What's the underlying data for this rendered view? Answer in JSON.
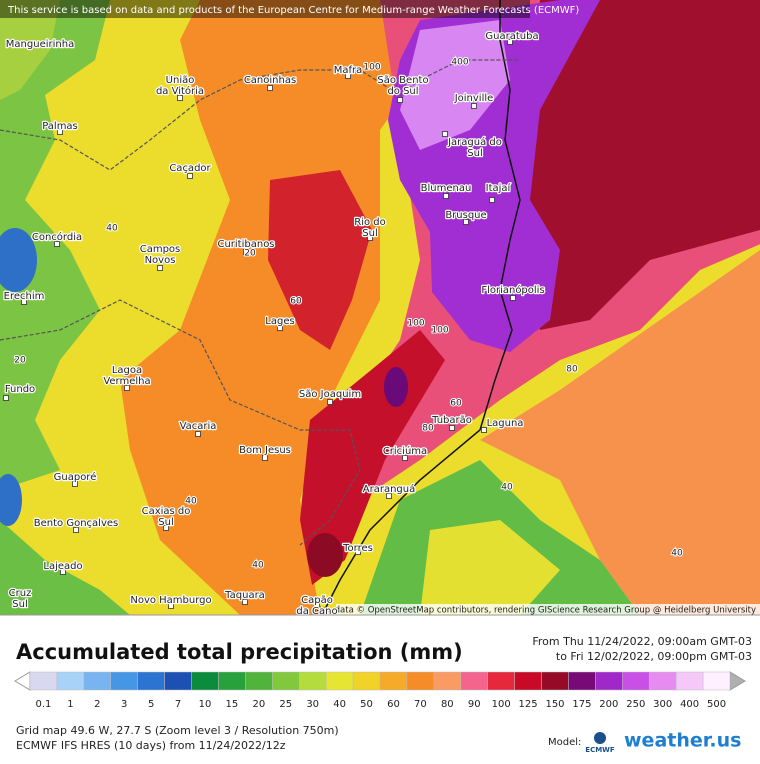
{
  "header": {
    "notice": "This service is based on data and products of the European Centre for Medium-range Weather Forecasts (ECMWF)"
  },
  "map": {
    "cities": [
      {
        "lines": [
          "Guaratuba"
        ]
      },
      {
        "lines": [
          "Mangueirinha"
        ]
      },
      {
        "lines": [
          "União",
          "da Vitória"
        ]
      },
      {
        "lines": [
          "Canoinhas"
        ]
      },
      {
        "lines": [
          "Mafra"
        ]
      },
      {
        "lines": [
          "São Bento",
          "do Sul"
        ]
      },
      {
        "lines": [
          "Joinville"
        ]
      },
      {
        "lines": [
          "Palmas"
        ]
      },
      {
        "lines": [
          "Jaraguá do",
          "Sul"
        ]
      },
      {
        "lines": [
          "Caçador"
        ]
      },
      {
        "lines": [
          "Blumenau"
        ]
      },
      {
        "lines": [
          "Itajaí"
        ]
      },
      {
        "lines": [
          "Brusque"
        ]
      },
      {
        "lines": [
          "Rio do",
          "Sul"
        ]
      },
      {
        "lines": [
          "Concórdia"
        ]
      },
      {
        "lines": [
          "Campos",
          "Novos"
        ]
      },
      {
        "lines": [
          "Curitibanos"
        ]
      },
      {
        "lines": [
          "Erechim"
        ]
      },
      {
        "lines": [
          "Florianópolis"
        ]
      },
      {
        "lines": [
          "Lages"
        ]
      },
      {
        "lines": [
          "Lagoa",
          "Vermelha"
        ]
      },
      {
        "lines": [
          "São Joaquim"
        ]
      },
      {
        "lines": [
          "Fundo"
        ]
      },
      {
        "lines": [
          "Tubarão"
        ]
      },
      {
        "lines": [
          "Laguna"
        ]
      },
      {
        "lines": [
          "Vacaria"
        ]
      },
      {
        "lines": [
          "Bom Jesus"
        ]
      },
      {
        "lines": [
          "Criciúma"
        ]
      },
      {
        "lines": [
          "Guaporé"
        ]
      },
      {
        "lines": [
          "Araranguá"
        ]
      },
      {
        "lines": [
          "Caxias do",
          "Sul"
        ]
      },
      {
        "lines": [
          "Bento Gonçalves"
        ]
      },
      {
        "lines": [
          "Torres"
        ]
      },
      {
        "lines": [
          "Lajeado"
        ]
      },
      {
        "lines": [
          "Cruz",
          "Sul"
        ]
      },
      {
        "lines": [
          "Novo Hamburgo"
        ]
      },
      {
        "lines": [
          "Taquara"
        ]
      },
      {
        "lines": [
          "Capão",
          "da Cano"
        ]
      }
    ],
    "contour_labels": [
      "100",
      "400",
      "40",
      "20",
      "60",
      "20",
      "100",
      "100",
      "80",
      "60",
      "80",
      "40",
      "40",
      "40",
      "40"
    ],
    "attribution": "Map data © OpenStreetMap contributors, rendering GIScience Research Group @ Heidelberg University"
  },
  "title": "Accumulated total precipitation (mm)",
  "period": [
    "From Thu 11/24/2022, 09:00am GMT-03",
    "to Fri 12/02/2022, 09:00pm GMT-03"
  ],
  "legend": {
    "values": [
      0.1,
      1,
      2,
      3,
      5,
      7,
      10,
      15,
      20,
      25,
      30,
      40,
      50,
      60,
      70,
      80,
      90,
      100,
      125,
      150,
      175,
      200,
      250,
      300,
      400,
      500
    ],
    "colors": [
      "#d8d8f0",
      "#a8d2f8",
      "#78b4f0",
      "#4696e6",
      "#2c73d2",
      "#1e50b4",
      "#0a8c3c",
      "#28a03c",
      "#50b43c",
      "#82c83c",
      "#b4dc3c",
      "#e6e632",
      "#f0d228",
      "#f5aa28",
      "#f58c28",
      "#fa9b64",
      "#f5648c",
      "#e6283c",
      "#c80a28",
      "#960a28",
      "#780a78",
      "#a028c8",
      "#c850e6",
      "#e68cf0",
      "#f5c8fa",
      "#fff0ff"
    ]
  },
  "footer": {
    "grid": "Grid map 49.6 W, 27.7 S (Zoom level 3 / Resolution 750m)",
    "model_run": "ECMWF IFS HRES (10 days) from 11/24/2022/12z",
    "model_label": "Model:",
    "model_logo": "ECMWF",
    "brand": "weather.us"
  }
}
